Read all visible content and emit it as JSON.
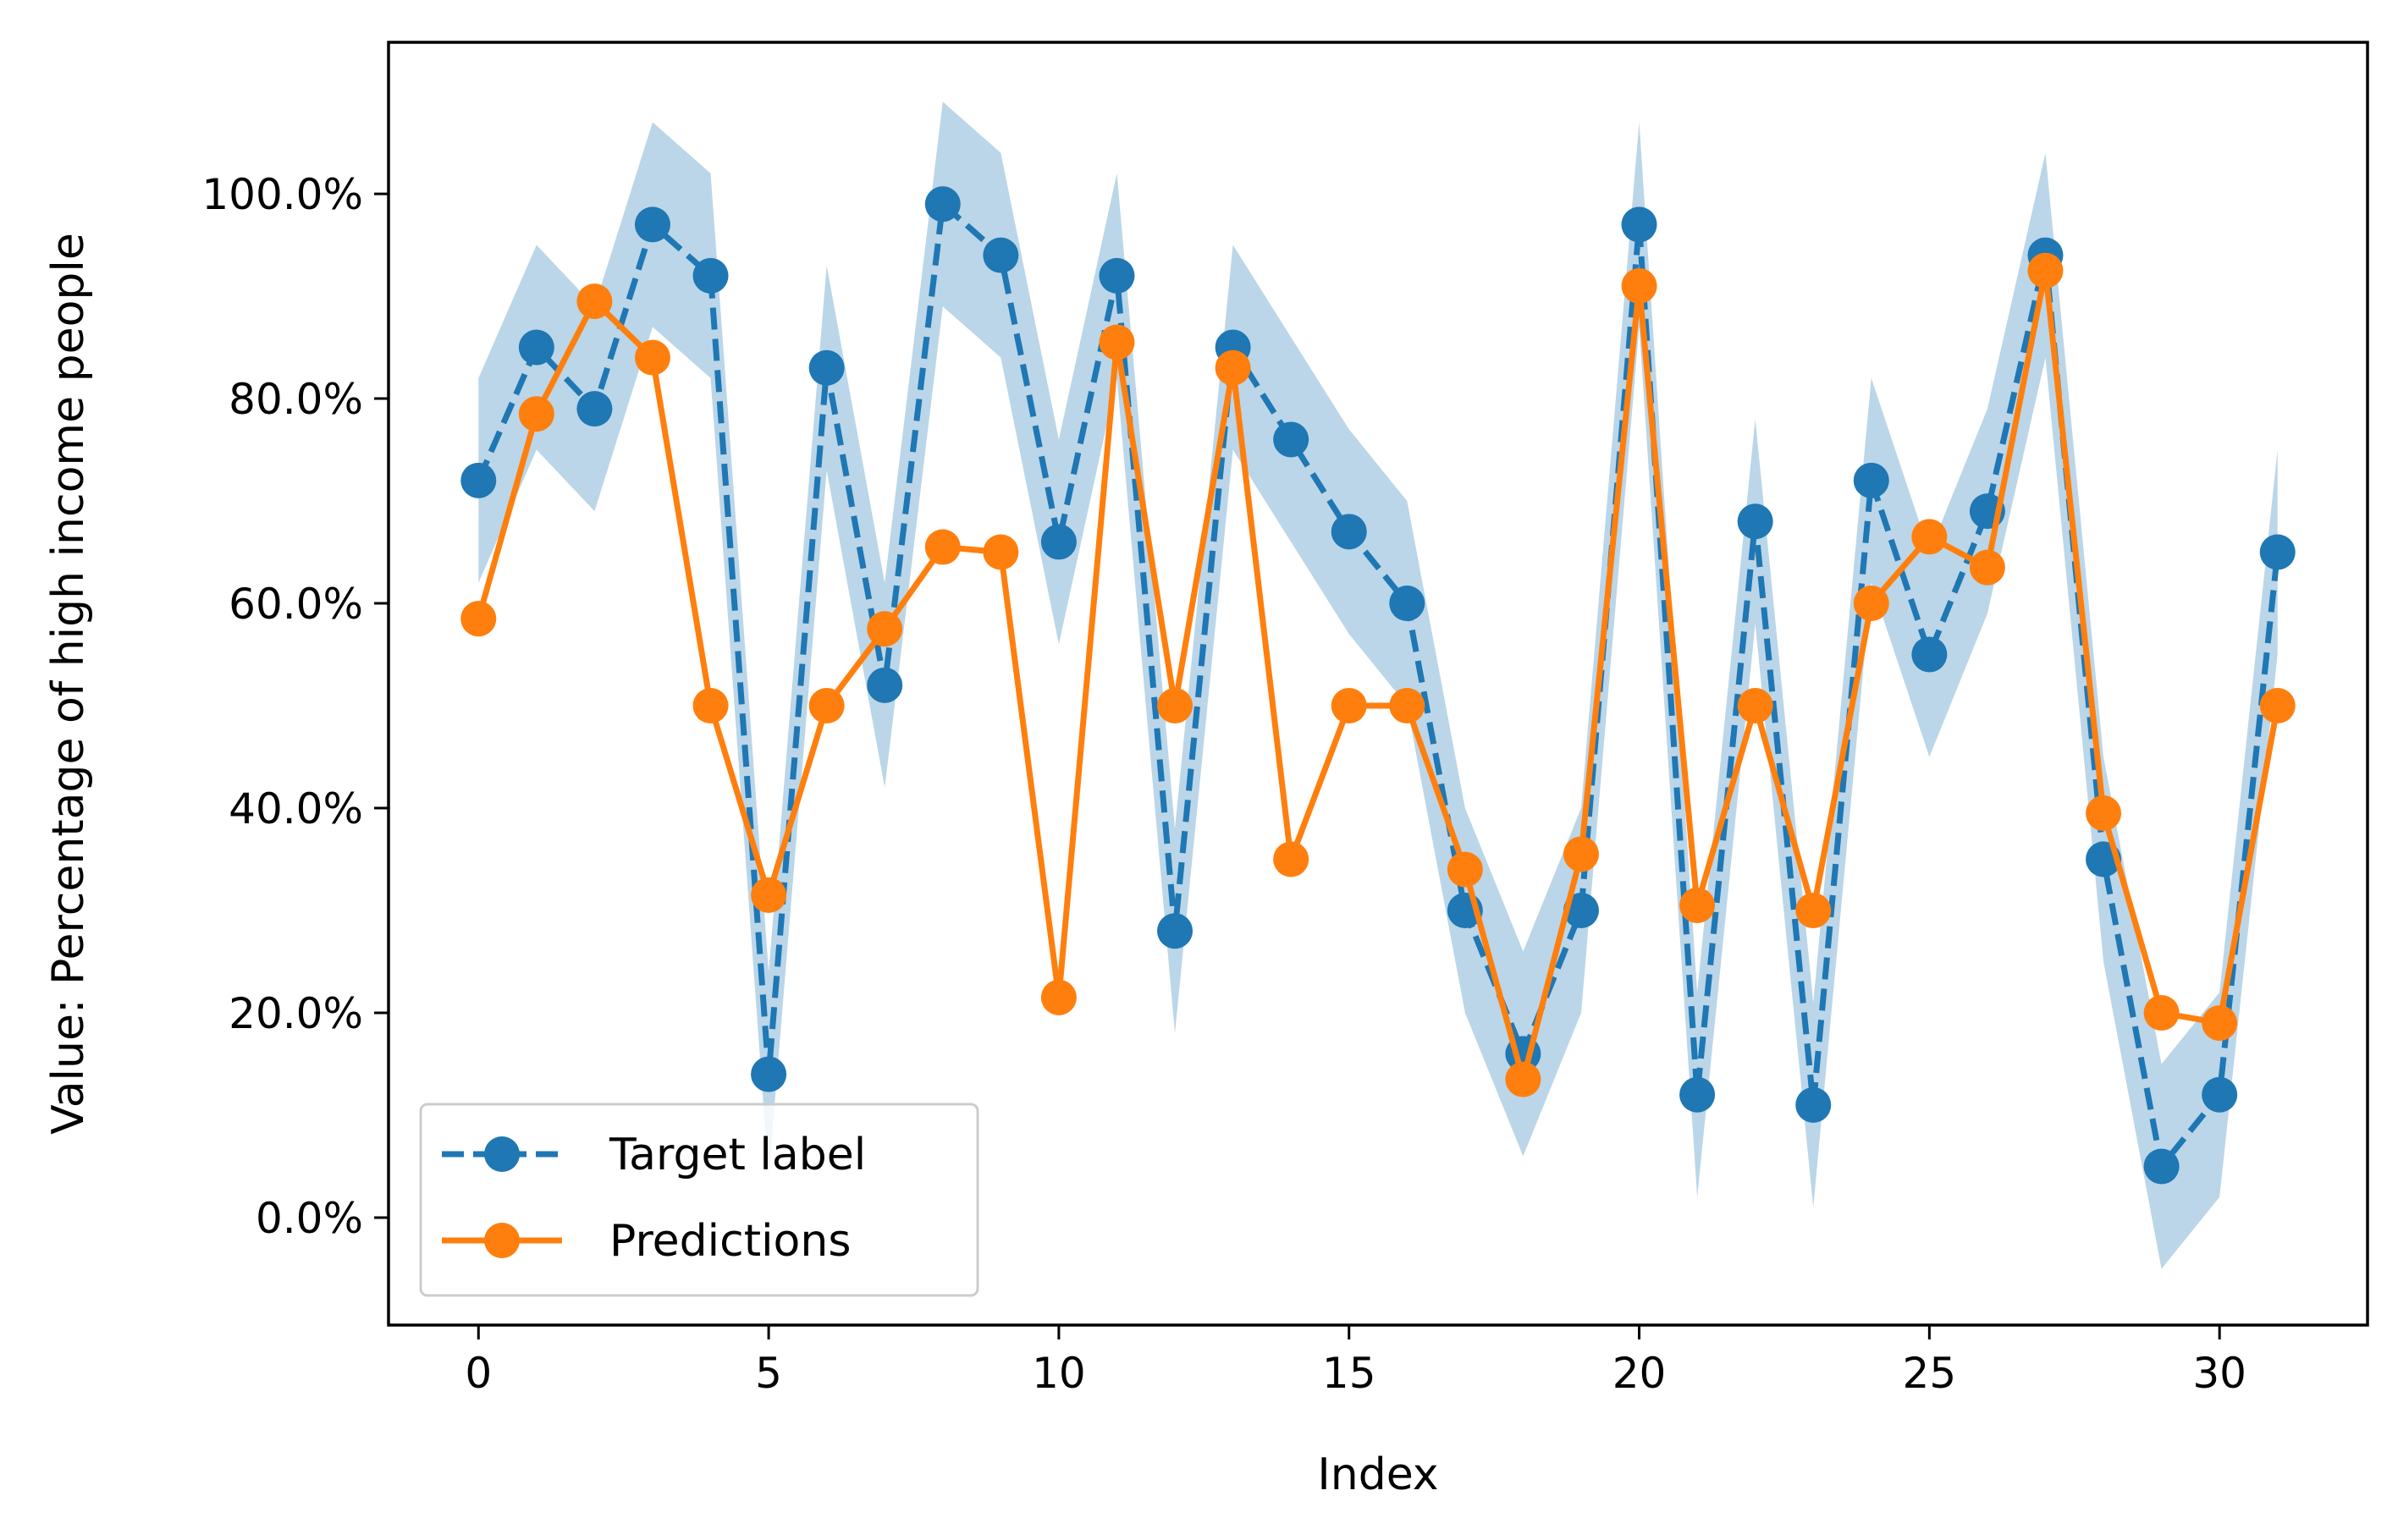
{
  "chart_data": {
    "type": "line",
    "title": "",
    "xlabel": "Index",
    "ylabel": "Value: Percentage of high income people",
    "xlim": [
      -1.55,
      32.55
    ],
    "ylim": [
      -0.105,
      1.148
    ],
    "x_ticks": [
      0,
      5,
      10,
      15,
      20,
      25,
      30
    ],
    "x_tick_labels": [
      "0",
      "5",
      "10",
      "15",
      "20",
      "25",
      "30"
    ],
    "y_ticks": [
      0.0,
      0.2,
      0.4,
      0.6,
      0.8,
      1.0
    ],
    "y_tick_labels": [
      "0.0%",
      "20.0%",
      "40.0%",
      "60.0%",
      "80.0%",
      "100.0%"
    ],
    "grid": false,
    "legend_position": "lower-left",
    "x": [
      0,
      1,
      2,
      3,
      4,
      5,
      6,
      7,
      8,
      9,
      10,
      11,
      12,
      13,
      14,
      15,
      16,
      17,
      18,
      19,
      20,
      21,
      22,
      23,
      24,
      25,
      26,
      27,
      28,
      29,
      30,
      31
    ],
    "band": {
      "series": "Target label",
      "half_width": 0.1,
      "color": "#1f77b4",
      "opacity": 0.3
    },
    "series": [
      {
        "name": "Target label",
        "style": "dashed",
        "marker": "circle",
        "color": "#1f77b4",
        "values": [
          0.72,
          0.85,
          0.79,
          0.97,
          0.92,
          0.14,
          0.83,
          0.52,
          0.99,
          0.94,
          0.66,
          0.92,
          0.28,
          0.85,
          0.76,
          0.67,
          0.6,
          0.3,
          0.16,
          0.3,
          0.97,
          0.12,
          0.68,
          0.11,
          0.72,
          0.55,
          0.69,
          0.94,
          0.35,
          0.05,
          0.12,
          0.65
        ]
      },
      {
        "name": "Predictions",
        "style": "solid",
        "marker": "circle",
        "color": "#ff7f0e",
        "values": [
          0.585,
          0.785,
          0.895,
          0.84,
          0.5,
          0.315,
          0.5,
          0.575,
          0.655,
          0.65,
          0.215,
          0.855,
          0.5,
          0.83,
          0.35,
          0.5,
          0.5,
          0.34,
          0.135,
          0.355,
          0.91,
          0.305,
          0.5,
          0.3,
          0.6,
          0.665,
          0.635,
          0.925,
          0.395,
          0.2,
          0.19,
          0.5
        ]
      }
    ]
  }
}
